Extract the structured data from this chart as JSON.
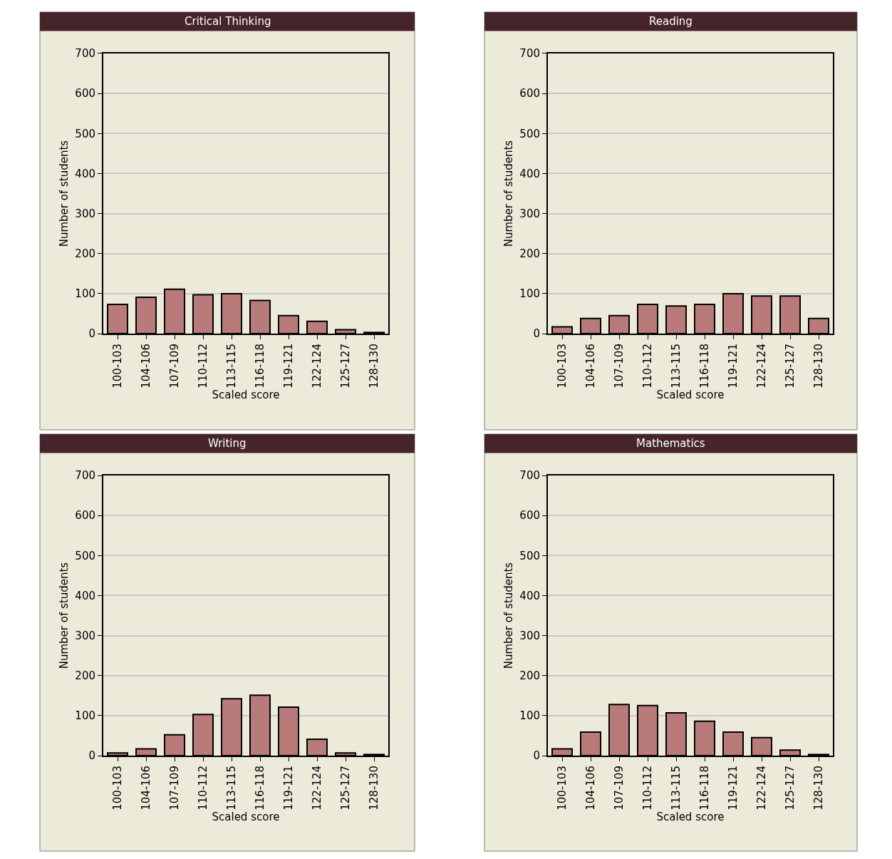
{
  "chart_data": [
    {
      "type": "bar",
      "title": "Critical Thinking",
      "xlabel": "Scaled score",
      "ylabel": "Number of students",
      "categories": [
        "100-103",
        "104-106",
        "107-109",
        "110-112",
        "113-115",
        "116-118",
        "119-121",
        "122-124",
        "125-127",
        "128-130"
      ],
      "values": [
        73,
        91,
        111,
        97,
        100,
        83,
        45,
        31,
        10,
        3
      ],
      "color": "#b97a7a",
      "ylim": [
        0,
        700
      ],
      "yticks": [
        0,
        100,
        200,
        300,
        400,
        500,
        600,
        700
      ],
      "grid": "y"
    },
    {
      "type": "bar",
      "title": "Reading",
      "xlabel": "Scaled score",
      "ylabel": "Number of students",
      "categories": [
        "100-103",
        "104-106",
        "107-109",
        "110-112",
        "113-115",
        "116-118",
        "119-121",
        "122-124",
        "125-127",
        "128-130"
      ],
      "values": [
        17,
        38,
        45,
        73,
        69,
        73,
        100,
        94,
        94,
        38
      ],
      "color": "#b97a7a",
      "ylim": [
        0,
        700
      ],
      "yticks": [
        0,
        100,
        200,
        300,
        400,
        500,
        600,
        700
      ],
      "grid": "y"
    },
    {
      "type": "bar",
      "title": "Writing",
      "xlabel": "Scaled score",
      "ylabel": "Number of students",
      "categories": [
        "100-103",
        "104-106",
        "107-109",
        "110-112",
        "113-115",
        "116-118",
        "119-121",
        "122-124",
        "125-127",
        "128-130"
      ],
      "values": [
        7,
        17,
        52,
        103,
        142,
        151,
        121,
        41,
        7,
        3
      ],
      "color": "#b97a7a",
      "ylim": [
        0,
        700
      ],
      "yticks": [
        0,
        100,
        200,
        300,
        400,
        500,
        600,
        700
      ],
      "grid": "y"
    },
    {
      "type": "bar",
      "title": "Mathematics",
      "xlabel": "Scaled score",
      "ylabel": "Number of students",
      "categories": [
        "100-103",
        "104-106",
        "107-109",
        "110-112",
        "113-115",
        "116-118",
        "119-121",
        "122-124",
        "125-127",
        "128-130"
      ],
      "values": [
        17,
        59,
        128,
        125,
        107,
        86,
        59,
        45,
        14,
        3
      ],
      "color": "#b97a7a",
      "ylim": [
        0,
        700
      ],
      "yticks": [
        0,
        100,
        200,
        300,
        400,
        500,
        600,
        700
      ],
      "grid": "y"
    }
  ]
}
